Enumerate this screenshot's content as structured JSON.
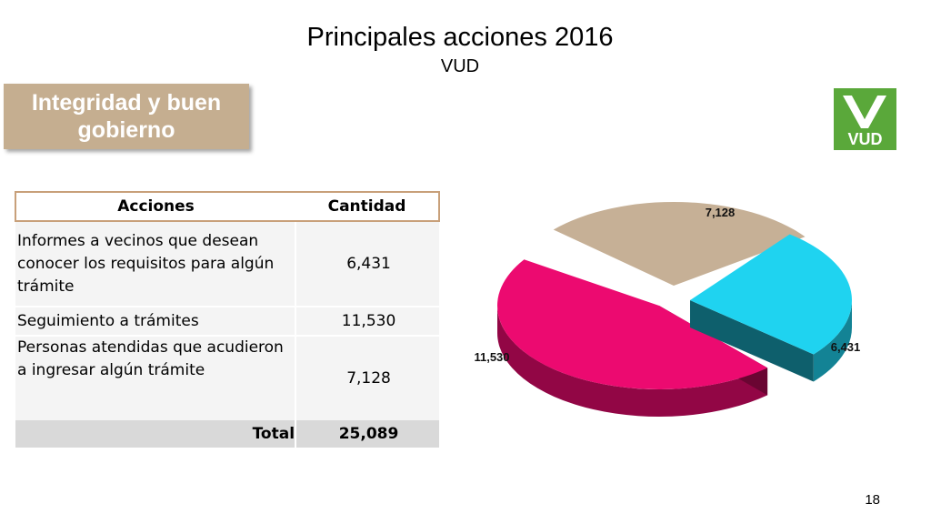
{
  "slide": {
    "title": "Principales acciones 2016",
    "subtitle": "VUD",
    "section_label": "Integridad y buen gobierno",
    "logo_text": "VUD",
    "page_number": "18"
  },
  "colors": {
    "section_box": "#c5ae90",
    "logo": "#5aa83a",
    "slice_magenta": "#ec0a70",
    "slice_cyan": "#1fd3f0",
    "slice_tan": "#c6b096"
  },
  "table": {
    "headers": [
      "Acciones",
      "Cantidad"
    ],
    "rows": [
      {
        "accion": "Informes a vecinos que desean conocer los requisitos para algún trámite",
        "cantidad": "6,431"
      },
      {
        "accion": "Seguimiento a trámites",
        "cantidad": "11,530"
      },
      {
        "accion": "Personas atendidas que acudieron a ingresar algún trámite",
        "cantidad": "7,128"
      }
    ],
    "total_label": "Total",
    "total_value": "25,089"
  },
  "chart_data": {
    "type": "pie",
    "categories": [
      "Informes a vecinos que desean conocer los requisitos para algún trámite",
      "Seguimiento a trámites",
      "Personas atendidas que acudieron a ingresar algún trámite"
    ],
    "values": [
      6431,
      11530,
      7128
    ],
    "data_labels": [
      "6,431",
      "11,530",
      "7,128"
    ],
    "colors": [
      "#1fd3f0",
      "#ec0a70",
      "#c6b096"
    ],
    "legend": "none",
    "style": "3d-exploded"
  }
}
